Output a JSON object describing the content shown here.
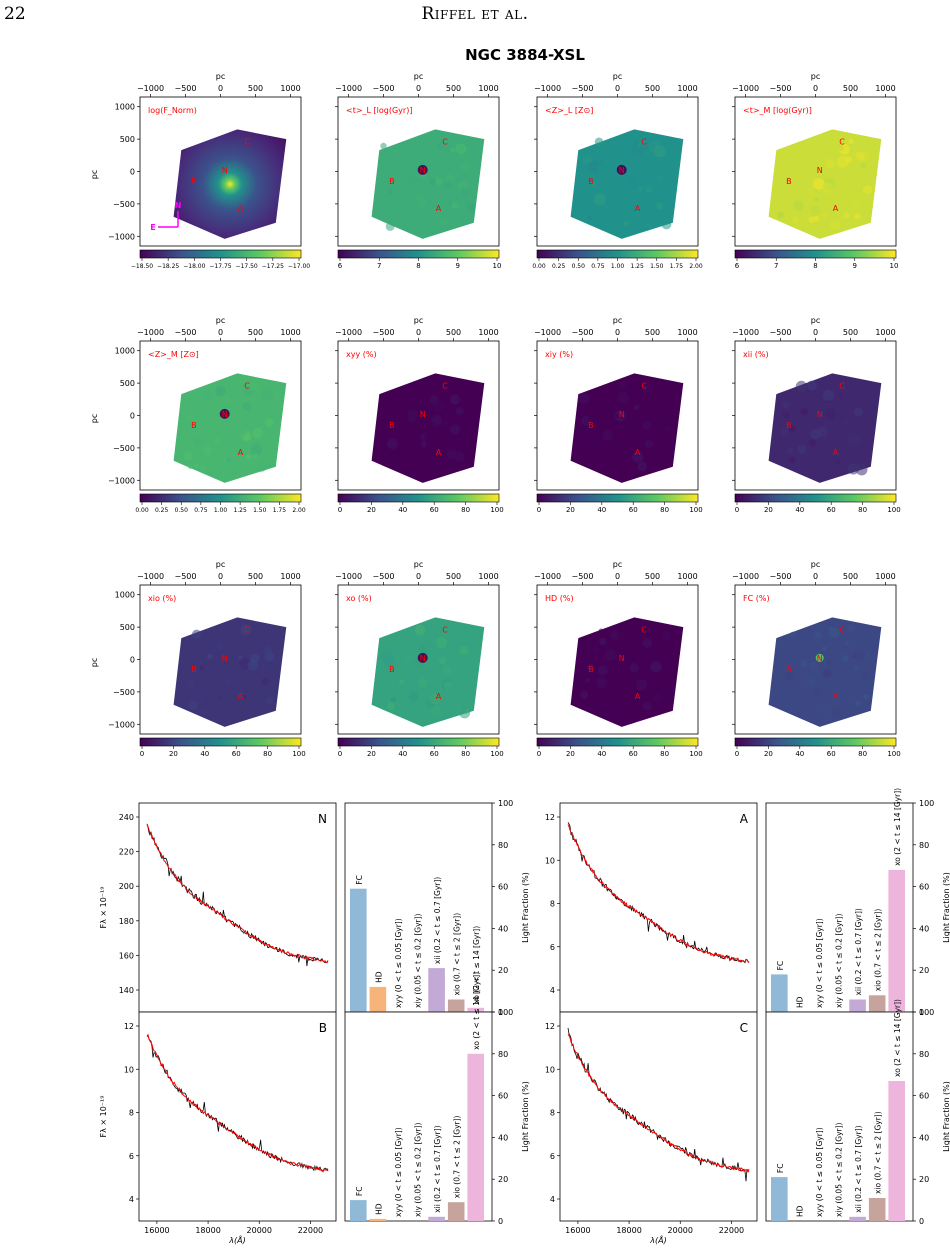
{
  "page": {
    "number": "22",
    "running_head": "Riffel et al."
  },
  "figure": {
    "title": "NGC 3884-XSL"
  },
  "axis_text": {
    "pc": "pc",
    "flux": "Fλ × 10⁻¹⁹",
    "wavelength": "λ(Å)",
    "light_fraction": "Light Fraction (%)"
  },
  "colors": {
    "viridis": [
      "#440154",
      "#3b528b",
      "#21918c",
      "#5ec962",
      "#fde725"
    ],
    "observed": "#000000",
    "model": "#ff0000",
    "labels": "#ff0000",
    "compass": "#ff00ff"
  },
  "map_axes": {
    "x_ticks": [
      "−1000",
      "−500",
      "0",
      "500",
      "1000"
    ],
    "y_ticks": [
      "1000",
      "500",
      "0",
      "−500",
      "−1000"
    ]
  },
  "compass": {
    "north": "N",
    "east": "E"
  },
  "maps": [
    {
      "label": "log(F_Norm)",
      "cbar": [
        "−18.50",
        "−18.25",
        "−18.00",
        "−17.75",
        "−17.50",
        "−17.25",
        "−17.00"
      ],
      "fill_level": 0.08,
      "nucleus": "bright"
    },
    {
      "label": "<t>_L [log(Gyr)]",
      "cbar": [
        "6",
        "7",
        "8",
        "9",
        "10"
      ],
      "fill_level": 0.62,
      "nucleus": "dark"
    },
    {
      "label": "<Z>_L [Z⊙]",
      "cbar": [
        "0.00",
        "0.25",
        "0.50",
        "0.75",
        "1.00",
        "1.25",
        "1.50",
        "1.75",
        "2.00"
      ],
      "fill_level": 0.5,
      "nucleus": "dark"
    },
    {
      "label": "<t>_M [log(Gyr)]",
      "cbar": [
        "6",
        "7",
        "8",
        "9",
        "10"
      ],
      "fill_level": 0.92,
      "nucleus": "none"
    },
    {
      "label": "<Z>_M [Z⊙]",
      "cbar": [
        "0.00",
        "0.25",
        "0.50",
        "0.75",
        "1.00",
        "1.25",
        "1.50",
        "1.75",
        "2.00"
      ],
      "fill_level": 0.66,
      "nucleus": "dark"
    },
    {
      "label": "xyy (%)",
      "cbar": [
        "0",
        "20",
        "40",
        "60",
        "80",
        "100"
      ],
      "fill_level": 0.0,
      "nucleus": "none"
    },
    {
      "label": "xiy (%)",
      "cbar": [
        "0",
        "20",
        "40",
        "60",
        "80",
        "100"
      ],
      "fill_level": 0.0,
      "nucleus": "none"
    },
    {
      "label": "xii (%)",
      "cbar": [
        "0",
        "20",
        "40",
        "60",
        "80",
        "100"
      ],
      "fill_level": 0.12,
      "nucleus": "none"
    },
    {
      "label": "xio (%)",
      "cbar": [
        "0",
        "20",
        "40",
        "60",
        "80",
        "100"
      ],
      "fill_level": 0.16,
      "nucleus": "none"
    },
    {
      "label": "xo (%)",
      "cbar": [
        "0",
        "20",
        "40",
        "60",
        "80",
        "100"
      ],
      "fill_level": 0.58,
      "nucleus": "dark"
    },
    {
      "label": "HD (%)",
      "cbar": [
        "0",
        "20",
        "40",
        "60",
        "80",
        "100"
      ],
      "fill_level": 0.0,
      "nucleus": "none"
    },
    {
      "label": "FC (%)",
      "cbar": [
        "0",
        "20",
        "40",
        "60",
        "80",
        "100"
      ],
      "fill_level": 0.22,
      "nucleus": "bright"
    }
  ],
  "region_labels": [
    "N",
    "A",
    "B",
    "C"
  ],
  "chart_data": {
    "type": "bar",
    "categories": [
      "FC",
      "HD",
      "xyy (0 < t ≤ 0.05 [Gyr])",
      "xiy (0.05 < t ≤ 0.2 [Gyr])",
      "xii (0.2 < t ≤ 0.7 [Gyr])",
      "xio (0.7 < t ≤ 2 [Gyr])",
      "xo (2 < t ≤ 14 [Gyr])"
    ],
    "bar_colors": [
      "#8fb9d6",
      "#f7b47a",
      "#ffffff",
      "#ffffff",
      "#c3a9d6",
      "#c6a39c",
      "#eeb5dc"
    ],
    "ylim": [
      0,
      100
    ],
    "yticks": [
      "0",
      "20",
      "40",
      "60",
      "80",
      "100"
    ],
    "spectrum_xticks": [
      "16000",
      "18000",
      "20000",
      "22000"
    ],
    "panels": [
      {
        "name": "N",
        "values": [
          59,
          12,
          0,
          0,
          21,
          6,
          2
        ],
        "yticks": [
          "140",
          "160",
          "180",
          "200",
          "220",
          "240"
        ]
      },
      {
        "name": "A",
        "values": [
          18,
          0,
          0,
          0,
          6,
          8,
          68
        ],
        "yticks": [
          "4",
          "6",
          "8",
          "10",
          "12"
        ]
      },
      {
        "name": "B",
        "values": [
          10,
          1,
          0,
          0,
          2,
          9,
          80
        ],
        "yticks": [
          "4",
          "6",
          "8",
          "10",
          "12"
        ]
      },
      {
        "name": "C",
        "values": [
          21,
          0,
          0,
          0,
          2,
          11,
          67
        ],
        "yticks": [
          "4",
          "6",
          "8",
          "10",
          "12"
        ]
      }
    ]
  }
}
